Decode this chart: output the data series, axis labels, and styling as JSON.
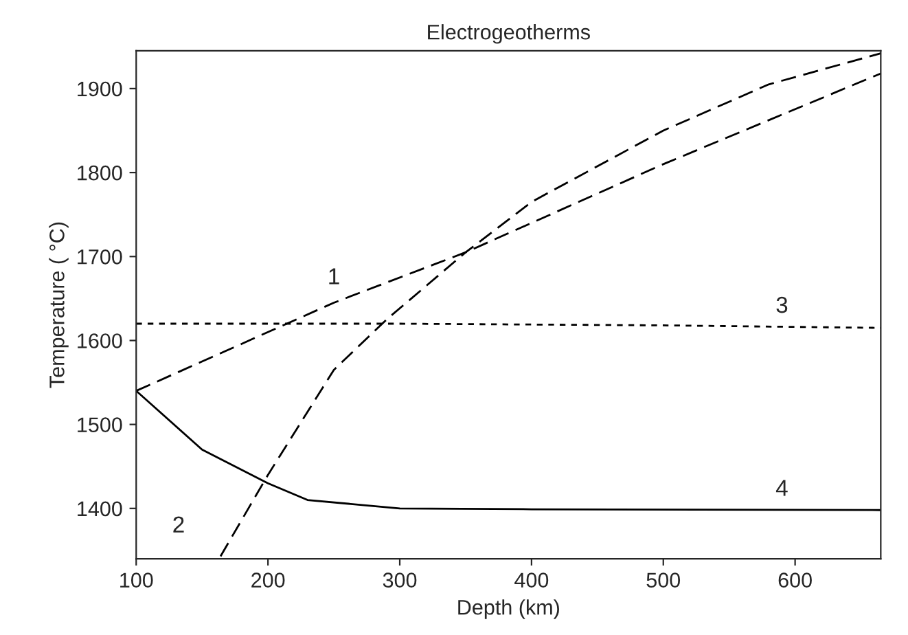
{
  "chart_data": {
    "type": "line",
    "title": "Electrogeotherms",
    "xlabel": "Depth (km)",
    "ylabel": "Temperature ( °C)",
    "xlim": [
      100,
      665
    ],
    "ylim": [
      1340,
      1945
    ],
    "xticks": [
      100,
      200,
      300,
      400,
      500,
      600
    ],
    "yticks": [
      1400,
      1500,
      1600,
      1700,
      1800,
      1900
    ],
    "grid": false,
    "legend": false,
    "marker": "none",
    "series": [
      {
        "color": "#000000",
        "line_style": "dashed",
        "x": [
          100,
          250,
          350,
          500,
          665
        ],
        "values": [
          1540,
          1645,
          1705,
          1810,
          1918
        ]
      },
      {
        "color": "#000000",
        "line_style": "dashed",
        "x": [
          164,
          200,
          250,
          290,
          350,
          400,
          500,
          580,
          665
        ],
        "values": [
          1343,
          1440,
          1565,
          1625,
          1705,
          1765,
          1850,
          1905,
          1942
        ]
      },
      {
        "color": "#000000",
        "line_style": "dotted",
        "x": [
          100,
          300,
          500,
          665
        ],
        "values": [
          1620,
          1620,
          1618,
          1615
        ]
      },
      {
        "color": "#000000",
        "line_style": "solid",
        "x": [
          100,
          150,
          200,
          230,
          300,
          400,
          665
        ],
        "values": [
          1540,
          1470,
          1430,
          1410,
          1400,
          1399,
          1398
        ]
      }
    ],
    "annotations": [
      {
        "text": "1",
        "x": 250,
        "y": 1650
      },
      {
        "text": "2",
        "x": 164,
        "y": 1343
      },
      {
        "text": "3",
        "x": 590,
        "y": 1616
      },
      {
        "text": "4",
        "x": 590,
        "y": 1398
      }
    ]
  }
}
